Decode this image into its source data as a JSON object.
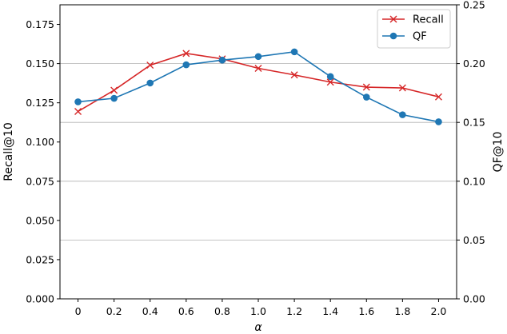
{
  "chart_data": {
    "type": "line",
    "xlabel": "α",
    "ylabel_left": "Recall@10",
    "ylabel_right": "QF@10",
    "x": [
      0,
      0.2,
      0.4,
      0.6,
      0.8,
      1.0,
      1.2,
      1.4,
      1.6,
      1.8,
      2.0
    ],
    "x_tick_labels": [
      "0",
      "0.2",
      "0.4",
      "0.6",
      "0.8",
      "1.0",
      "1.2",
      "1.4",
      "1.6",
      "1.8",
      "2.0"
    ],
    "ylim_left": [
      0,
      0.1875
    ],
    "ylim_right": [
      0,
      0.25
    ],
    "y_ticks_left": [
      "0.000",
      "0.025",
      "0.050",
      "0.075",
      "0.100",
      "0.125",
      "0.150",
      "0.175"
    ],
    "y_ticks_right": [
      "0.00",
      "0.05",
      "0.10",
      "0.15",
      "0.20",
      "0.25"
    ],
    "grid": "horizontal (right axis)",
    "legend_position": "top-right",
    "series": [
      {
        "name": "Recall",
        "axis": "left",
        "color": "#d62728",
        "marker": "x",
        "values": [
          0.1195,
          0.133,
          0.149,
          0.1565,
          0.153,
          0.147,
          0.1428,
          0.1382,
          0.135,
          0.1345,
          0.1288
        ]
      },
      {
        "name": "QF",
        "axis": "right",
        "color": "#1f77b4",
        "marker": "o",
        "values": [
          0.1675,
          0.1705,
          0.1835,
          0.199,
          0.203,
          0.206,
          0.21,
          0.189,
          0.1715,
          0.1565,
          0.1505
        ]
      }
    ]
  }
}
